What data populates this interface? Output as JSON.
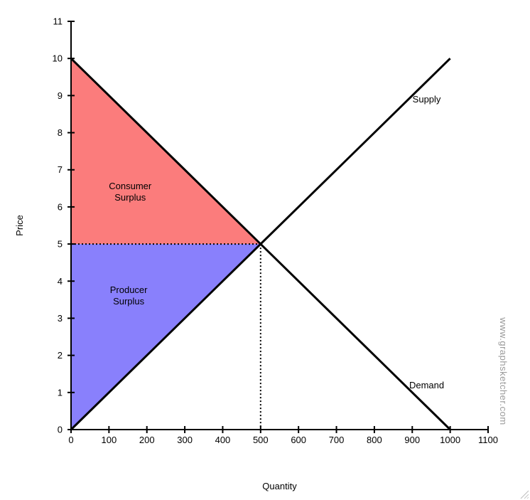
{
  "watermark": "www.graphsketcher.com",
  "chart_data": {
    "type": "line",
    "title": "",
    "xlabel": "Quantity",
    "ylabel": "Price",
    "xlim": [
      0,
      1100
    ],
    "ylim": [
      0,
      11
    ],
    "grid": false,
    "axis_color": "#000000",
    "x_ticks": [
      0,
      100,
      200,
      300,
      400,
      500,
      600,
      700,
      800,
      900,
      1000,
      1100
    ],
    "y_ticks": [
      0,
      1,
      2,
      3,
      4,
      5,
      6,
      7,
      8,
      9,
      10,
      11
    ],
    "series": [
      {
        "name": "Supply",
        "points": [
          [
            0,
            0
          ],
          [
            1000,
            10
          ]
        ],
        "color": "#000000",
        "label": "Supply",
        "label_at": {
          "x": 938,
          "y": 8.9
        }
      },
      {
        "name": "Demand",
        "points": [
          [
            0,
            10
          ],
          [
            1000,
            0
          ]
        ],
        "color": "#000000",
        "label": "Demand",
        "label_at": {
          "x": 938,
          "y": 1.2
        }
      }
    ],
    "regions": [
      {
        "name": "consumer-surplus",
        "label_lines": [
          "Consumer",
          "Surplus"
        ],
        "points": [
          [
            0,
            10
          ],
          [
            500,
            5
          ],
          [
            0,
            5
          ]
        ],
        "fill": "#FB7C7C",
        "label_at": {
          "x": 156,
          "y": 6.4
        }
      },
      {
        "name": "producer-surplus",
        "label_lines": [
          "Producer",
          "Surplus"
        ],
        "points": [
          [
            0,
            5
          ],
          [
            500,
            5
          ],
          [
            0,
            0
          ]
        ],
        "fill": "#8980FC",
        "label_at": {
          "x": 152,
          "y": 3.6
        }
      }
    ],
    "guides": [
      {
        "name": "equilibrium-price-guide",
        "from": [
          0,
          5
        ],
        "to": [
          500,
          5
        ]
      },
      {
        "name": "equilibrium-quantity-guide",
        "from": [
          500,
          5
        ],
        "to": [
          500,
          0
        ]
      }
    ],
    "equilibrium": {
      "quantity": 500,
      "price": 5
    }
  }
}
